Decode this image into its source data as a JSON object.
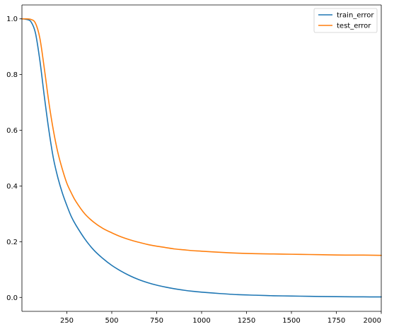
{
  "chart_data": {
    "type": "line",
    "title": "",
    "xlabel": "",
    "ylabel": "",
    "xlim": [
      0,
      2000
    ],
    "ylim": [
      -0.05,
      1.05
    ],
    "xticks": [
      250,
      500,
      750,
      1000,
      1250,
      1500,
      1750,
      2000
    ],
    "xtick_labels": [
      "250",
      "500",
      "750",
      "1000",
      "1250",
      "1500",
      "1750",
      "2000"
    ],
    "yticks": [
      0.0,
      0.2,
      0.4,
      0.6,
      0.8,
      1.0
    ],
    "ytick_labels": [
      "0.0",
      "0.2",
      "0.4",
      "0.6",
      "0.8",
      "1.0"
    ],
    "grid": false,
    "legend_position": "top-right",
    "series": [
      {
        "name": "train_error",
        "color": "#1f77b4",
        "x": [
          0,
          25,
          50,
          75,
          100,
          125,
          150,
          175,
          200,
          225,
          250,
          275,
          300,
          350,
          400,
          450,
          500,
          550,
          600,
          650,
          700,
          750,
          800,
          850,
          900,
          950,
          1000,
          1100,
          1200,
          1300,
          1400,
          1500,
          1600,
          1700,
          1800,
          1900,
          2000
        ],
        "y": [
          1.0,
          0.998,
          0.99,
          0.95,
          0.85,
          0.72,
          0.6,
          0.5,
          0.43,
          0.375,
          0.33,
          0.29,
          0.26,
          0.21,
          0.17,
          0.14,
          0.115,
          0.095,
          0.078,
          0.064,
          0.053,
          0.044,
          0.037,
          0.031,
          0.026,
          0.022,
          0.019,
          0.014,
          0.01,
          0.008,
          0.006,
          0.005,
          0.004,
          0.003,
          0.0025,
          0.002,
          0.0018
        ]
      },
      {
        "name": "test_error",
        "color": "#ff7f0e",
        "x": [
          0,
          25,
          50,
          75,
          100,
          125,
          150,
          175,
          200,
          225,
          250,
          275,
          300,
          350,
          400,
          450,
          500,
          550,
          600,
          650,
          700,
          750,
          800,
          850,
          900,
          950,
          1000,
          1100,
          1200,
          1300,
          1400,
          1500,
          1600,
          1700,
          1800,
          1900,
          2000
        ],
        "y": [
          1.0,
          1.0,
          0.998,
          0.985,
          0.93,
          0.82,
          0.7,
          0.6,
          0.52,
          0.46,
          0.41,
          0.375,
          0.345,
          0.3,
          0.27,
          0.248,
          0.232,
          0.218,
          0.207,
          0.198,
          0.19,
          0.184,
          0.179,
          0.174,
          0.171,
          0.168,
          0.166,
          0.162,
          0.159,
          0.157,
          0.156,
          0.155,
          0.154,
          0.153,
          0.152,
          0.152,
          0.151
        ]
      }
    ]
  }
}
